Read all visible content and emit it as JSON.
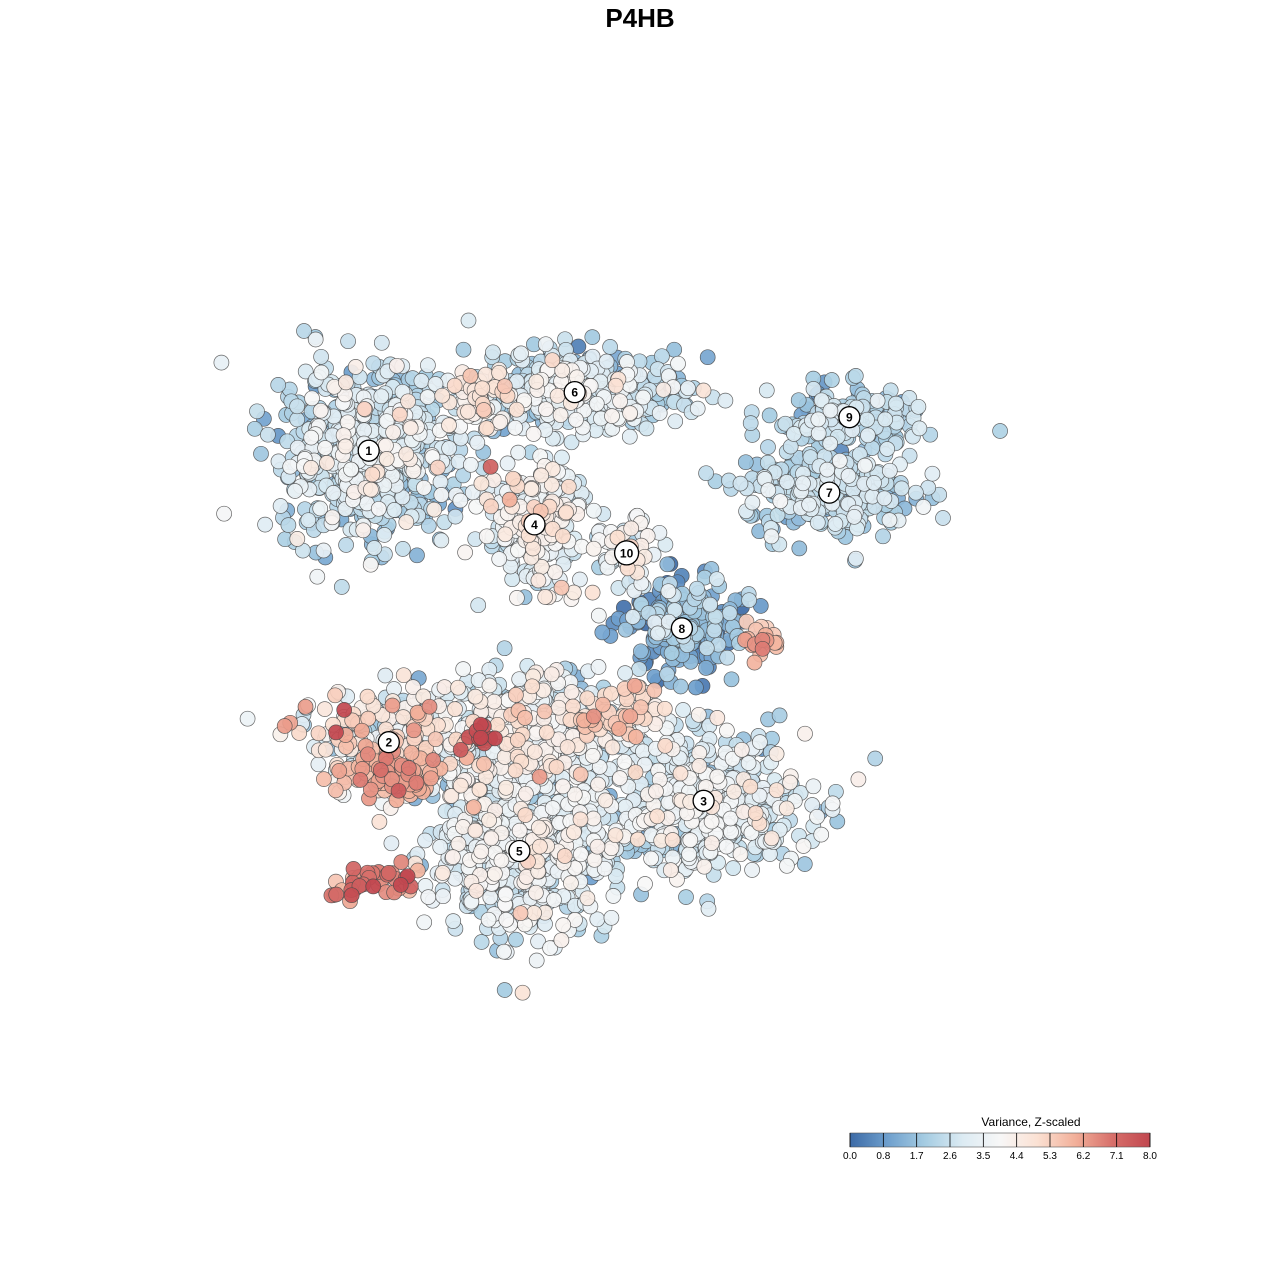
{
  "chart_data": {
    "type": "scatter",
    "title": "P4HB",
    "xlabel": "",
    "ylabel": "",
    "grid": false,
    "colorbar": {
      "title": "Variance, Z-scaled",
      "range": [
        0.0,
        8.0
      ],
      "ticks": [
        "0.0",
        "0.8",
        "1.7",
        "2.6",
        "3.5",
        "4.4",
        "5.3",
        "6.2",
        "7.1",
        "8.0"
      ],
      "colors": [
        "#3c6aa6",
        "#6e9fcd",
        "#a5cce2",
        "#dcebf3",
        "#f7f7f7",
        "#fbe1d3",
        "#f2b09a",
        "#d76f6a",
        "#c1474f"
      ],
      "placement": "bottom-right"
    },
    "clusters": [
      {
        "id": "1",
        "x": -16.2,
        "y": 11.3,
        "sx": 2.6,
        "sy": 2.5,
        "mean": 2.6,
        "spread": 0.9,
        "n": 720
      },
      {
        "id": "2",
        "x": -15.0,
        "y": -6.1,
        "sx": 2.8,
        "sy": 1.6,
        "mean": 3.9,
        "spread": 1.3,
        "n": 250
      },
      {
        "id": "3",
        "x": 3.8,
        "y": -9.6,
        "sx": 3.1,
        "sy": 2.1,
        "mean": 3.0,
        "spread": 0.8,
        "n": 520
      },
      {
        "id": "4",
        "x": -6.3,
        "y": 6.9,
        "sx": 1.5,
        "sy": 1.8,
        "mean": 3.5,
        "spread": 0.9,
        "n": 280
      },
      {
        "id": "5",
        "x": -7.2,
        "y": -12.6,
        "sx": 2.6,
        "sy": 2.5,
        "mean": 3.2,
        "spread": 0.8,
        "n": 620
      },
      {
        "id": "6",
        "x": -3.9,
        "y": 14.8,
        "sx": 3.2,
        "sy": 1.2,
        "mean": 2.7,
        "spread": 0.9,
        "n": 430
      },
      {
        "id": "7",
        "x": 11.3,
        "y": 8.8,
        "sx": 2.5,
        "sy": 1.3,
        "mean": 2.4,
        "spread": 0.6,
        "n": 300
      },
      {
        "id": "8",
        "x": 2.5,
        "y": 0.7,
        "sx": 1.7,
        "sy": 1.5,
        "mean": 1.4,
        "spread": 0.8,
        "n": 230
      },
      {
        "id": "9",
        "x": 12.5,
        "y": 13.3,
        "sx": 2.1,
        "sy": 0.9,
        "mean": 2.2,
        "spread": 0.6,
        "n": 180
      },
      {
        "id": "10",
        "x": -0.8,
        "y": 5.2,
        "sx": 0.9,
        "sy": 1.0,
        "mean": 3.6,
        "spread": 0.7,
        "n": 60
      },
      {
        "id": "",
        "x": -6.5,
        "y": -5.8,
        "sx": 2.8,
        "sy": 1.9,
        "mean": 3.3,
        "spread": 1.0,
        "n": 420
      }
    ],
    "hotspots": [
      {
        "x": -14.6,
        "y": -8.1,
        "sx": 1.4,
        "sy": 0.8,
        "mean": 5.8,
        "spread": 0.6,
        "n": 90
      },
      {
        "x": -16.0,
        "y": -14.3,
        "sx": 1.3,
        "sy": 0.6,
        "mean": 6.8,
        "spread": 0.8,
        "n": 45
      },
      {
        "x": -9.2,
        "y": -5.8,
        "sx": 0.6,
        "sy": 0.3,
        "mean": 7.8,
        "spread": 0.2,
        "n": 10
      },
      {
        "x": 7.2,
        "y": 0.0,
        "sx": 0.6,
        "sy": 0.5,
        "mean": 5.9,
        "spread": 0.5,
        "n": 22
      },
      {
        "x": -1.4,
        "y": -4.4,
        "sx": 1.8,
        "sy": 0.9,
        "mean": 4.9,
        "spread": 0.6,
        "n": 75
      },
      {
        "x": -9.6,
        "y": 14.3,
        "sx": 0.9,
        "sy": 0.9,
        "mean": 4.7,
        "spread": 0.5,
        "n": 45
      }
    ]
  }
}
